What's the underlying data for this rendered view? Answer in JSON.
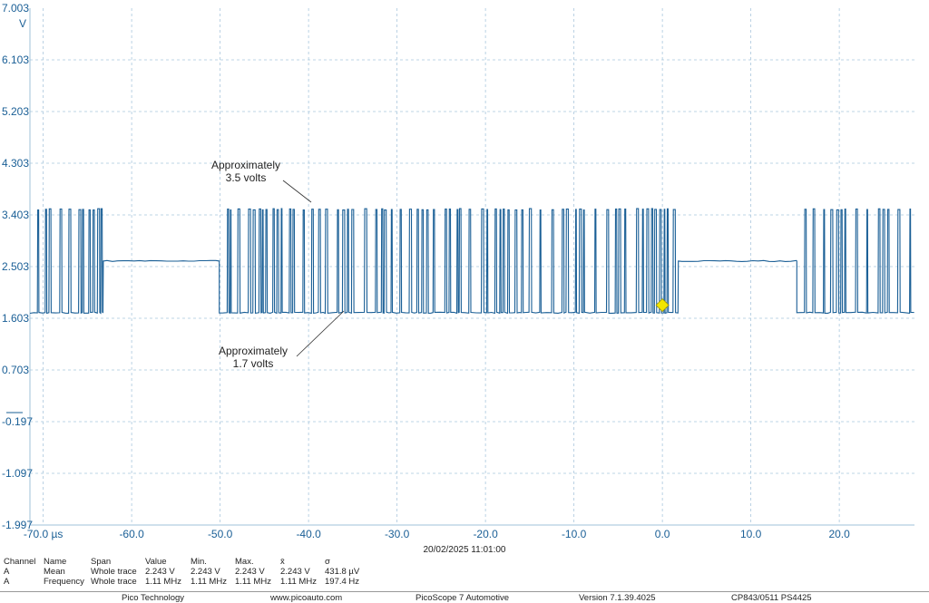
{
  "chart_data": {
    "type": "line",
    "title": "",
    "xlabel": "",
    "ylabel": "V",
    "x_unit": "µs",
    "xlim": [
      -71.5,
      28.5
    ],
    "ylim": [
      -1.997,
      7.003
    ],
    "x_ticks": [
      -70,
      -60,
      -50,
      -40,
      -30,
      -20,
      -10,
      0,
      10,
      20
    ],
    "x_tick_labels": [
      "-70.0 µs",
      "-60.0",
      "-50.0",
      "-40.0",
      "-30.0",
      "-20.0",
      "-10.0",
      "0.0",
      "10.0",
      "20.0"
    ],
    "y_ticks": [
      7.003,
      6.103,
      5.203,
      4.303,
      3.403,
      2.503,
      1.603,
      0.703,
      -0.197,
      -1.097,
      -1.997
    ],
    "y_tick_labels": [
      "7.003",
      "6.103",
      "5.203",
      "4.303",
      "3.403",
      "2.503",
      "1.603",
      "0.703",
      "-0.197",
      "-1.097",
      "-1.997"
    ],
    "grid": true,
    "series": [
      {
        "name": "A",
        "color": "#1a5f96",
        "high_v": 3.5,
        "low_v": 1.7,
        "idle_v": 2.6,
        "segments": [
          {
            "kind": "data",
            "start": -71.5,
            "end": -63.2
          },
          {
            "kind": "idle",
            "start": -63.2,
            "end": -50.1
          },
          {
            "kind": "data",
            "start": -50.1,
            "end": 1.8
          },
          {
            "kind": "idle",
            "start": 1.8,
            "end": 15.2
          },
          {
            "kind": "data",
            "start": 15.2,
            "end": 28.5
          }
        ]
      }
    ],
    "annotations": [
      {
        "lines": [
          "Approximately",
          "3.5 volts"
        ]
      },
      {
        "lines": [
          "Approximately",
          "1.7 volts"
        ]
      }
    ],
    "trigger": {
      "x": 0.0,
      "y": 1.8,
      "color": "#f2e600"
    },
    "timestamp": "20/02/2025 11:01:00"
  },
  "measurements": {
    "headers": [
      "Channel",
      "Name",
      "Span",
      "Value",
      "Min.",
      "Max.",
      "x̄",
      "σ"
    ],
    "rows": [
      [
        "A",
        "Mean",
        "Whole trace",
        "2.243 V",
        "2.243 V",
        "2.243 V",
        "2.243 V",
        "431.8 µV"
      ],
      [
        "A",
        "Frequency",
        "Whole trace",
        "1.11 MHz",
        "1.11 MHz",
        "1.11 MHz",
        "1.11 MHz",
        "197.4 Hz"
      ]
    ]
  },
  "footer": {
    "company": "Pico Technology",
    "website": "www.picoauto.com",
    "product": "PicoScope 7 Automotive",
    "version": "Version 7.1.39.4025",
    "device": "CP843/0511 PS4425"
  }
}
